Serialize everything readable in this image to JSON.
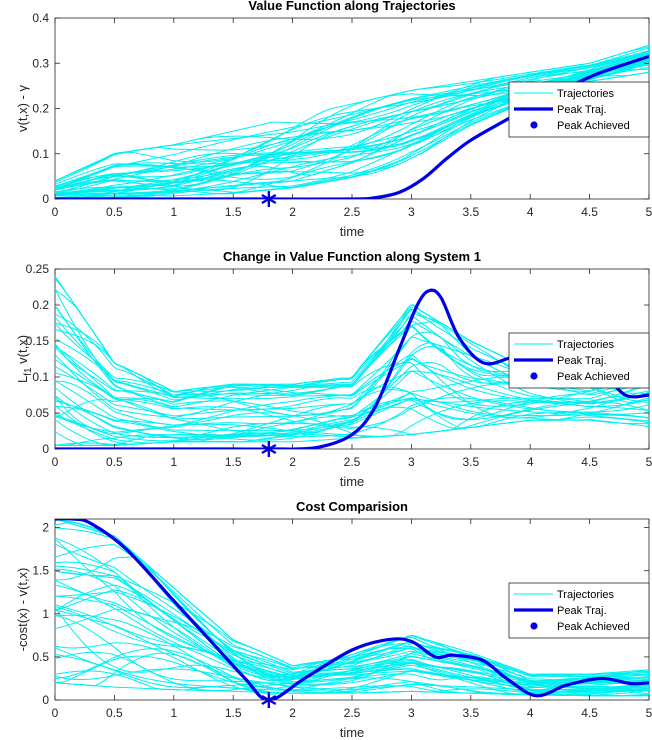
{
  "figure": {
    "background": "#ffffff",
    "colors": {
      "trajectories": "#00f0f0",
      "peak": "#0000e6",
      "axis": "#262626"
    }
  },
  "chart_data": [
    {
      "type": "line",
      "title": "Value Function along Trajectories",
      "xlabel": "time",
      "ylabel": "v(t,x) - γ",
      "xlim": [
        0,
        5
      ],
      "ylim": [
        0,
        0.4
      ],
      "xticks": [
        "0",
        "0.5",
        "1",
        "1.5",
        "2",
        "2.5",
        "3",
        "3.5",
        "4",
        "4.5",
        "5"
      ],
      "yticks": [
        "0",
        "0.1",
        "0.2",
        "0.3",
        "0.4"
      ],
      "legend": {
        "position": "right",
        "entries": [
          "Trajectories",
          "Peak Traj.",
          "Peak Achieved"
        ]
      },
      "trajectory_family": {
        "count": 40,
        "description": "noisy bundle of cyan curves rising from ~0.01-0.05 at t=0 to ~0.28-0.34 at t=5",
        "envelope": {
          "x": [
            0,
            0.5,
            1,
            1.5,
            2,
            2.5,
            3,
            3.5,
            4,
            4.5,
            5
          ],
          "low": [
            0.0,
            0.005,
            0.01,
            0.02,
            0.04,
            0.08,
            0.14,
            0.19,
            0.23,
            0.26,
            0.28
          ],
          "high": [
            0.04,
            0.1,
            0.12,
            0.15,
            0.18,
            0.21,
            0.24,
            0.26,
            0.28,
            0.3,
            0.34
          ]
        }
      },
      "series": [
        {
          "name": "Peak Traj.",
          "x": [
            0,
            0.5,
            1,
            1.5,
            1.8,
            2.5,
            2.7,
            2.9,
            3.1,
            3.3,
            3.5,
            3.8,
            4.0,
            4.3,
            4.6,
            5.0
          ],
          "values": [
            0.0,
            0.0,
            0.0,
            0.0,
            0.0,
            0.0,
            0.003,
            0.015,
            0.045,
            0.09,
            0.13,
            0.175,
            0.205,
            0.245,
            0.28,
            0.315
          ]
        }
      ],
      "peak_marker": {
        "x": 1.8,
        "y": 0.0,
        "label": "Peak Achieved"
      }
    },
    {
      "type": "line",
      "title": "Change in Value Function along System 1",
      "xlabel": "time",
      "ylabel": "L_f1 v(t,x)",
      "xlim": [
        0,
        5
      ],
      "ylim": [
        0,
        0.25
      ],
      "xticks": [
        "0",
        "0.5",
        "1",
        "1.5",
        "2",
        "2.5",
        "3",
        "3.5",
        "4",
        "4.5",
        "5"
      ],
      "yticks": [
        "0",
        "0.05",
        "0.1",
        "0.15",
        "0.2",
        "0.25"
      ],
      "legend": {
        "position": "right",
        "entries": [
          "Trajectories",
          "Peak Traj.",
          "Peak Achieved"
        ]
      },
      "trajectory_family": {
        "count": 40,
        "description": "cyan curves starting 0.01-0.24 at t=0, settling near 0.02-0.09, peaking 0.08-0.2 around t=3-3.3, ending 0.03-0.14",
        "envelope": {
          "x": [
            0,
            0.5,
            1,
            1.5,
            2,
            2.5,
            3,
            3.5,
            4,
            4.5,
            5
          ],
          "low": [
            0.005,
            0.005,
            0.01,
            0.01,
            0.01,
            0.015,
            0.02,
            0.03,
            0.04,
            0.04,
            0.03
          ],
          "high": [
            0.24,
            0.12,
            0.08,
            0.09,
            0.09,
            0.1,
            0.2,
            0.15,
            0.11,
            0.1,
            0.14
          ]
        }
      },
      "series": [
        {
          "name": "Peak Traj.",
          "x": [
            0,
            0.5,
            1,
            1.5,
            1.8,
            2.2,
            2.5,
            2.7,
            2.9,
            3.05,
            3.15,
            3.25,
            3.4,
            3.6,
            3.8,
            4.0,
            4.2,
            4.4,
            4.6,
            4.8,
            5.0
          ],
          "values": [
            0.0,
            0.0,
            0.0,
            0.0,
            0.0,
            0.002,
            0.02,
            0.06,
            0.14,
            0.2,
            0.22,
            0.21,
            0.155,
            0.12,
            0.125,
            0.14,
            0.15,
            0.14,
            0.11,
            0.075,
            0.075
          ]
        }
      ],
      "peak_marker": {
        "x": 1.8,
        "y": 0.0,
        "label": "Peak Achieved"
      }
    },
    {
      "type": "line",
      "title": "Cost Comparision",
      "xlabel": "time",
      "ylabel": "-cost(x) - v(t,x)",
      "xlim": [
        0,
        5
      ],
      "ylim": [
        0,
        2.1
      ],
      "xticks": [
        "0",
        "0.5",
        "1",
        "1.5",
        "2",
        "2.5",
        "3",
        "3.5",
        "4",
        "4.5",
        "5"
      ],
      "yticks": [
        "0",
        "0.5",
        "1",
        "1.5",
        "2"
      ],
      "legend": {
        "position": "right",
        "entries": [
          "Trajectories",
          "Peak Traj.",
          "Peak Achieved"
        ]
      },
      "trajectory_family": {
        "count": 40,
        "description": "cyan curves starting 0.2-2.1 at t=0, decaying to 0.1-0.4 near t=2, small bumps to ~0.75 around t=3, ending 0.05-0.3",
        "envelope": {
          "x": [
            0,
            0.5,
            1,
            1.5,
            2,
            2.5,
            3,
            3.5,
            4,
            4.5,
            5
          ],
          "low": [
            0.2,
            0.15,
            0.12,
            0.1,
            0.08,
            0.08,
            0.1,
            0.08,
            0.06,
            0.05,
            0.05
          ],
          "high": [
            2.1,
            1.9,
            1.3,
            0.7,
            0.4,
            0.5,
            0.75,
            0.55,
            0.3,
            0.3,
            0.35
          ]
        }
      },
      "series": [
        {
          "name": "Peak Traj.",
          "x": [
            0,
            0.15,
            0.3,
            0.6,
            1.0,
            1.3,
            1.6,
            1.8,
            2.1,
            2.5,
            2.8,
            3.0,
            3.2,
            3.35,
            3.6,
            3.8,
            4.05,
            4.3,
            4.6,
            4.85,
            5.0
          ],
          "values": [
            2.1,
            2.1,
            2.05,
            1.75,
            1.15,
            0.7,
            0.25,
            0.0,
            0.25,
            0.58,
            0.7,
            0.68,
            0.5,
            0.52,
            0.46,
            0.25,
            0.05,
            0.17,
            0.25,
            0.19,
            0.2
          ]
        }
      ],
      "peak_marker": {
        "x": 1.8,
        "y": 0.0,
        "label": "Peak Achieved"
      }
    }
  ]
}
